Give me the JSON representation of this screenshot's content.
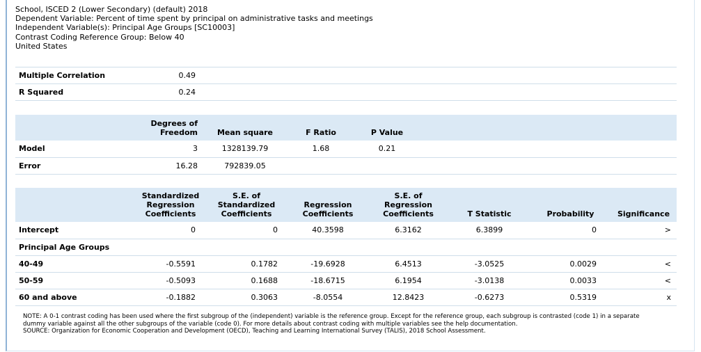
{
  "header": {
    "line1": "School, ISCED 2 (Lower Secondary) (default) 2018",
    "line2": "Dependent Variable: Percent of time spent by principal on administrative tasks and meetings",
    "line3": "Independent Variable(s): Principal Age Groups [SC10003]",
    "line4": "Contrast Coding Reference Group: Below 40",
    "line5": "United States"
  },
  "fit": {
    "multiple_correlation_label": "Multiple Correlation",
    "multiple_correlation": "0.49",
    "r_squared_label": "R Squared",
    "r_squared": "0.24"
  },
  "anova": {
    "headers": {
      "df_line1": "Degrees of",
      "df_line2": "Freedom",
      "mean_square": "Mean square",
      "f_ratio": "F Ratio",
      "p_value": "P Value"
    },
    "rows": [
      {
        "label": "Model",
        "df": "3",
        "mean_square": "1328139.79",
        "f_ratio": "1.68",
        "p_value": "0.21"
      },
      {
        "label": "Error",
        "df": "16.28",
        "mean_square": "792839.05",
        "f_ratio": "",
        "p_value": ""
      }
    ]
  },
  "coefficients": {
    "headers": {
      "std_l1": "Standardized",
      "std_l2": "Regression",
      "std_l3": "Coefficients",
      "se_std_l1": "S.E. of",
      "se_std_l2": "Standardized",
      "se_std_l3": "Coefficients",
      "reg_l1": "Regression",
      "reg_l2": "Coefficients",
      "se_reg_l1": "S.E. of",
      "se_reg_l2": "Regression",
      "se_reg_l3": "Coefficients",
      "t": "T Statistic",
      "prob": "Probability",
      "sig": "Significance"
    },
    "intercept": {
      "label": "Intercept",
      "std": "0",
      "se_std": "0",
      "reg": "40.3598",
      "se_reg": "6.3162",
      "t": "6.3899",
      "prob": "0",
      "sig": ">"
    },
    "group_label": "Principal Age Groups",
    "rows": [
      {
        "label": "40-49",
        "std": "-0.5591",
        "se_std": "0.1782",
        "reg": "-19.6928",
        "se_reg": "6.4513",
        "t": "-3.0525",
        "prob": "0.0029",
        "sig": "<"
      },
      {
        "label": "50-59",
        "std": "-0.5093",
        "se_std": "0.1688",
        "reg": "-18.6715",
        "se_reg": "6.1954",
        "t": "-3.0138",
        "prob": "0.0033",
        "sig": "<"
      },
      {
        "label": "60 and above",
        "std": "-0.1882",
        "se_std": "0.3063",
        "reg": "-8.0554",
        "se_reg": "12.8423",
        "t": "-0.6273",
        "prob": "0.5319",
        "sig": "x"
      }
    ]
  },
  "notes": {
    "line1": "NOTE: A 0-1 contrast coding has been used where the first subgroup of the (independent) variable is the reference group. Except for the reference group, each subgroup is contrasted (code 1) in a separate",
    "line2": "dummy variable against all the other subgroups of the variable (code 0). For more details about contrast coding with multiple variables see the help documentation.",
    "line3": "SOURCE: Organization for Economic Cooperation and Development (OECD), Teaching and Learning International Survey (TALIS), 2018 School Assessment."
  }
}
